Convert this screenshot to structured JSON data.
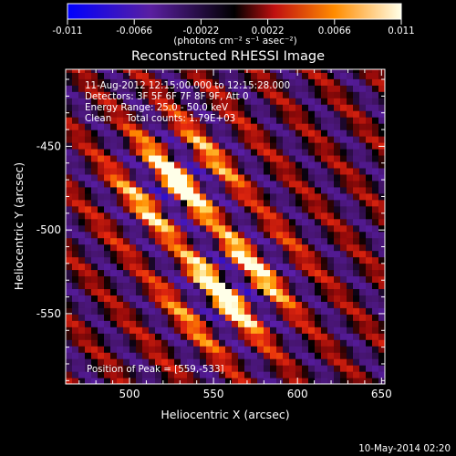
{
  "colorbar": {
    "tick_labels": [
      "-0.011",
      "-0.0066",
      "-0.0022",
      "0.0022",
      "0.0066",
      "0.011"
    ],
    "unit_label": "(photons cm⁻² s⁻¹ asec⁻²)"
  },
  "timestamp": "10-May-2014 02:20",
  "chart_data": {
    "type": "heatmap",
    "title": "Reconstructed RHESSI Image",
    "xlabel": "Heliocentric X (arcsec)",
    "ylabel": "Heliocentric Y (arcsec)",
    "xlim": [
      462,
      652
    ],
    "ylim": [
      -592,
      -404
    ],
    "x_ticks": [
      500,
      550,
      600,
      650
    ],
    "y_ticks": [
      -450,
      -500,
      -550
    ],
    "colorbar_range": [
      -0.011,
      0.011
    ],
    "grid": false,
    "info_lines": [
      "11-Aug-2012 12:15:00.000 to 12:15:28.000",
      "Detectors: 3F 5F 6F 7F 8F 9F, Att 0",
      "Energy Range: 25.0 - 50.0 keV",
      "Clean     Total counts: 1.79E+03"
    ],
    "peak_label": "Position of Peak = [559,-533]",
    "peak": {
      "x": 559,
      "y": -533,
      "value": 0.011
    },
    "secondary_peak": {
      "x": 528,
      "y": -473,
      "value": 0.0095
    },
    "stripe_angle_deg": -48,
    "stripe_period_arcsec": 26
  }
}
